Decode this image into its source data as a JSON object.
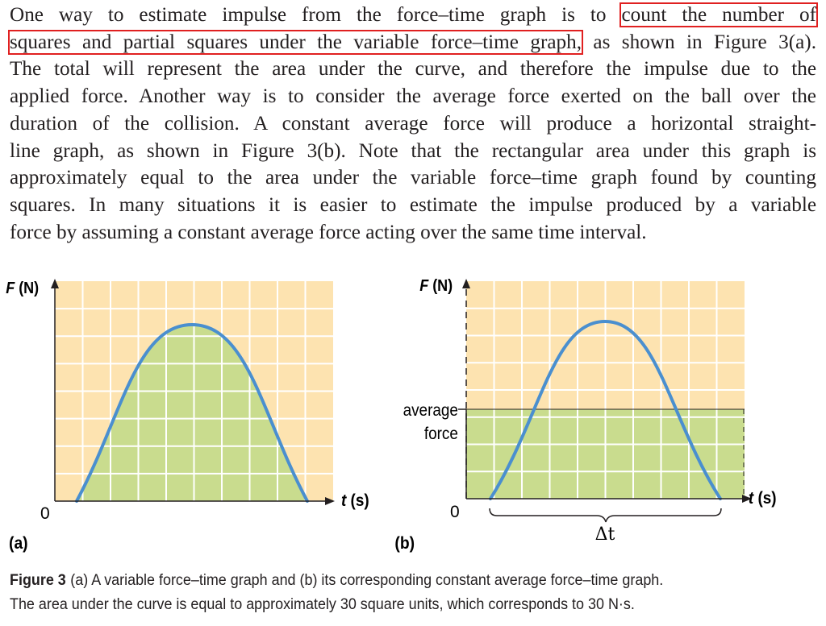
{
  "paragraph": {
    "l1_pre": "One way to estimate impulse from the force–time graph is to ",
    "l1_hl": "count the number of",
    "l2_hl": "squares and partial squares under the variable force–time graph,",
    "l2_post": " as shown in Figure 3(a).",
    "l3": "The total will represent the area under the curve, and therefore the impulse due to the",
    "l4": "applied force. Another way is to consider the average force exerted on the ball over the",
    "l5": "duration of the collision. A constant average force will produce a horizontal straight-",
    "l6": "line graph, as shown in Figure 3(b). Note that the rectangular area under this graph is",
    "l7": "approximately equal to the area under the variable force–time graph found by counting",
    "l8": "squares. In many situations it is easier to estimate the impulse produced by a variable",
    "l9": "force by assuming a constant average force acting over the same time interval."
  },
  "figure_a": {
    "y_label_italic": "F",
    "y_label_unit": " (N)",
    "x_label_italic": "t",
    "x_label_unit": " (s)",
    "origin": "0",
    "panel_label": "(a)"
  },
  "figure_b": {
    "y_label_italic": "F",
    "y_label_unit": " (N)",
    "x_label_italic": "t",
    "x_label_unit": " (s)",
    "origin": "0",
    "panel_label": "(b)",
    "avg_label_1": "average",
    "avg_label_2": "force",
    "delta_t": "Δt"
  },
  "caption": {
    "label": "Figure 3",
    "line1": "(a) A variable force–time graph and (b) its corresponding constant average force–time graph.",
    "line2": "The area under the curve is equal to approximately 30 square units, which corresponds to 30 N·s."
  },
  "colors": {
    "grid_bg": "#fde3b0",
    "fill": "#c9dc8e",
    "curve": "#4a8fcf",
    "highlight": "#e02020",
    "text": "#231f20"
  }
}
